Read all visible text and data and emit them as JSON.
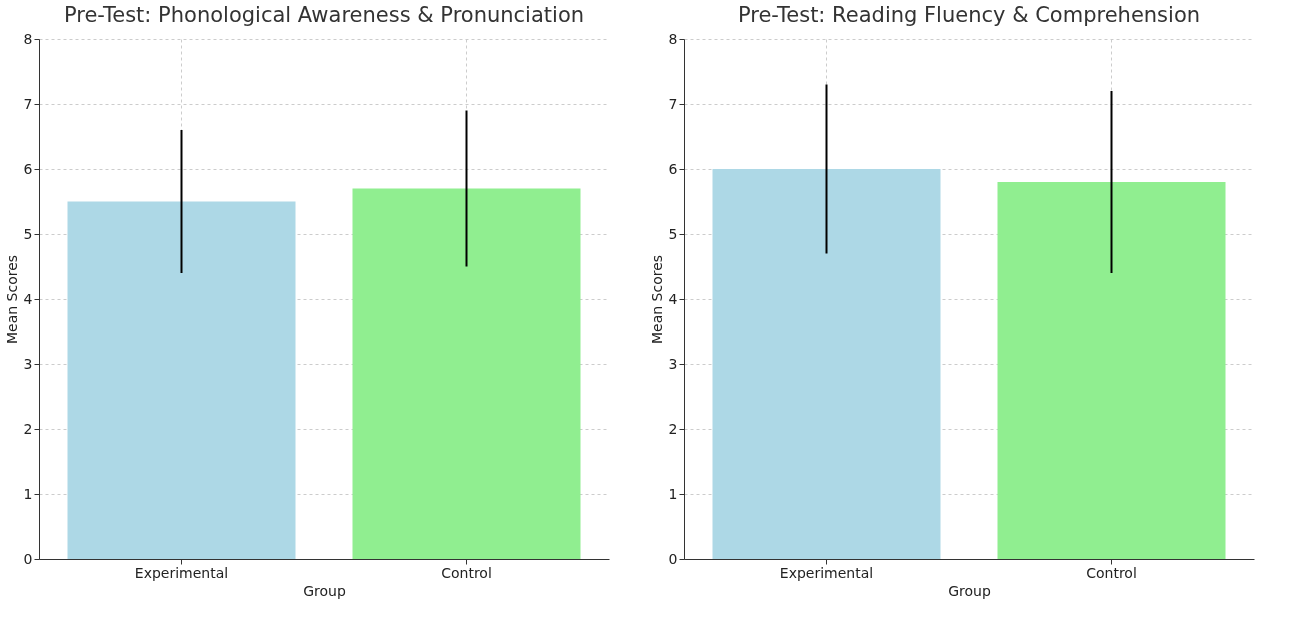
{
  "chart_data": [
    {
      "type": "bar",
      "title": "Pre-Test: Phonological Awareness & Pronunciation",
      "xlabel": "Group",
      "ylabel": "Mean Scores",
      "categories": [
        "Experimental",
        "Control"
      ],
      "values": [
        5.5,
        5.7
      ],
      "errors": [
        1.1,
        1.2
      ],
      "colors": [
        "#add8e6",
        "#90ee90"
      ],
      "ylim": [
        0,
        8
      ],
      "yticks": [
        0,
        1,
        2,
        3,
        4,
        5,
        6,
        7,
        8
      ],
      "grid": true
    },
    {
      "type": "bar",
      "title": "Pre-Test: Reading Fluency & Comprehension",
      "xlabel": "Group",
      "ylabel": "Mean Scores",
      "categories": [
        "Experimental",
        "Control"
      ],
      "values": [
        6.0,
        5.8
      ],
      "errors": [
        1.3,
        1.4
      ],
      "colors": [
        "#add8e6",
        "#90ee90"
      ],
      "ylim": [
        0,
        8
      ],
      "yticks": [
        0,
        1,
        2,
        3,
        4,
        5,
        6,
        7,
        8
      ],
      "grid": true
    }
  ]
}
